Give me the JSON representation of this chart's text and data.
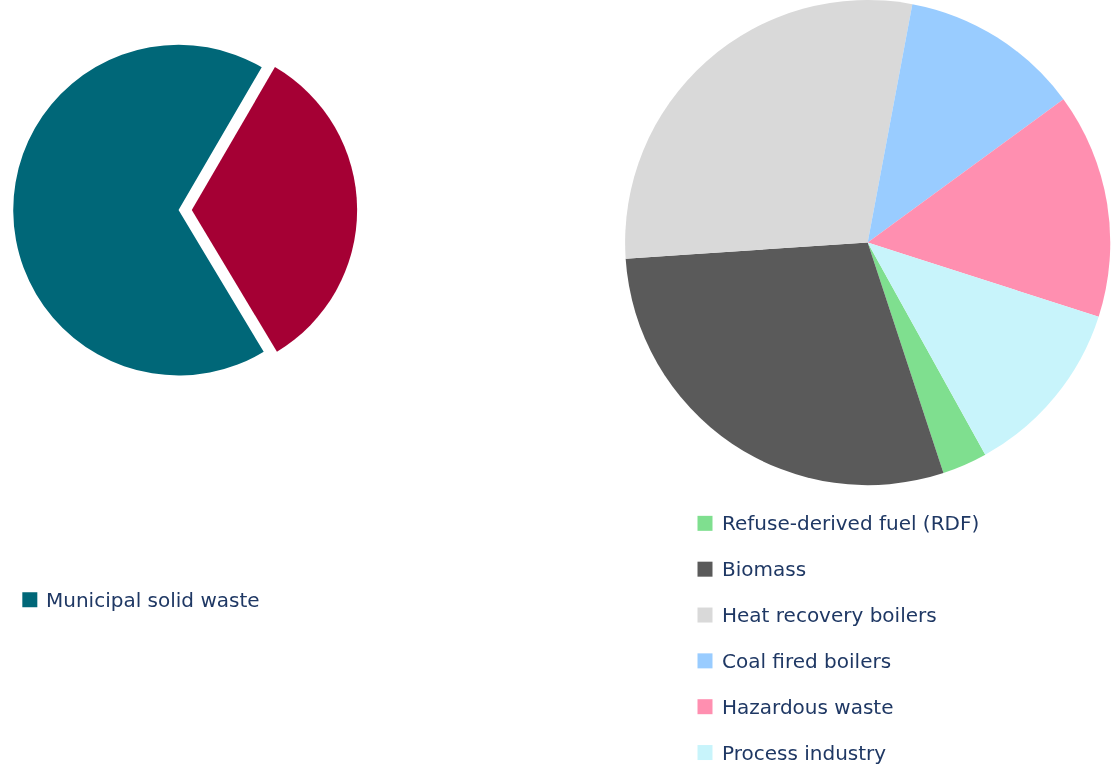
{
  "chart_data": [
    {
      "type": "pie",
      "categories": [
        "Municipal solid waste",
        null
      ],
      "values": [
        67,
        33
      ],
      "colors": [
        "#006778",
        "#a50034"
      ],
      "legend": "bottom"
    },
    {
      "type": "pie",
      "categories": [
        "Refuse-derived fuel (RDF)",
        "Biomass",
        "Heat recovery boilers",
        "Coal fired boilers",
        "Hazardous waste",
        "Process industry"
      ],
      "values": [
        3,
        29,
        29,
        12,
        15,
        12
      ],
      "colors": [
        "#7fdf8f",
        "#5a5a5a",
        "#d9d9d9",
        "#99ccff",
        "#ff8fb0",
        "#c8f4fb"
      ],
      "legend": "bottom"
    }
  ]
}
